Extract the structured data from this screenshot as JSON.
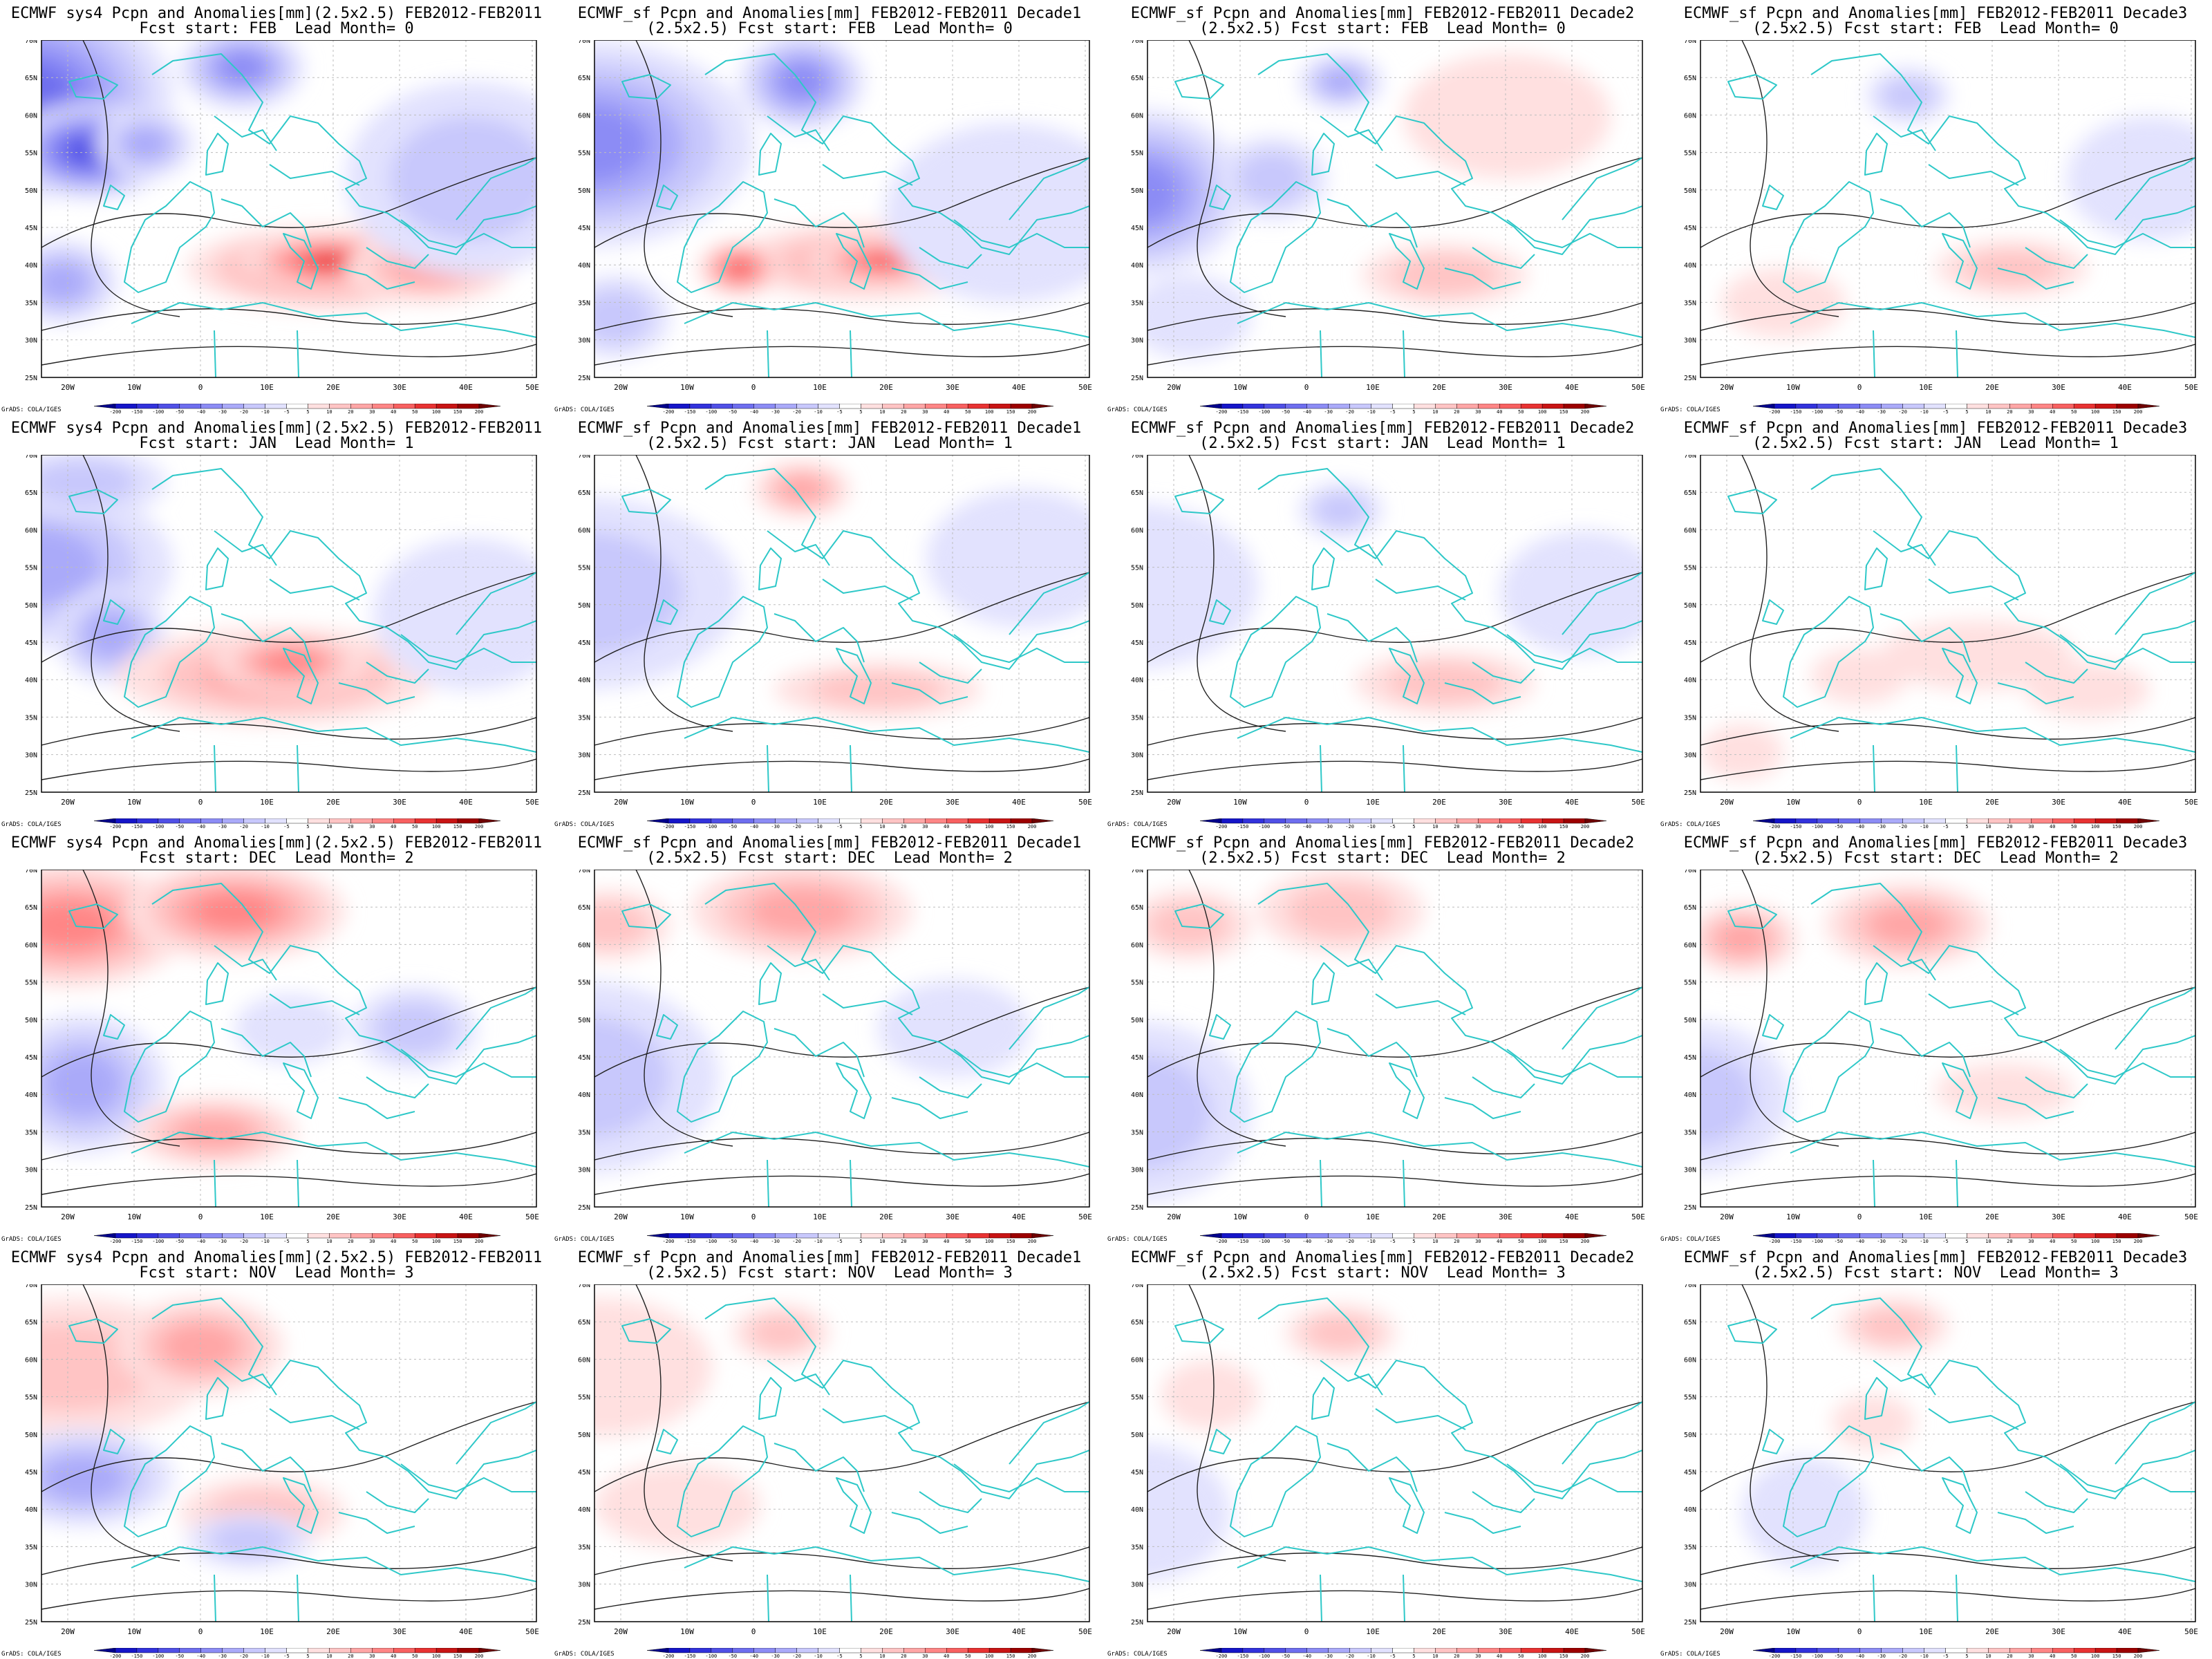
{
  "panels": [
    {
      "title1": "ECMWF sys4 Pcpn and Anomalies[mm](2.5x2.5) FEB2012-FEB2011",
      "title2": "Fcst start: FEB  Lead Month= 0"
    },
    {
      "title1": "ECMWF_sf Pcpn and Anomalies[mm] FEB2012-FEB2011 Decade1",
      "title2": "(2.5x2.5) Fcst start: FEB  Lead Month= 0"
    },
    {
      "title1": "ECMWF_sf Pcpn and Anomalies[mm] FEB2012-FEB2011 Decade2",
      "title2": "(2.5x2.5) Fcst start: FEB  Lead Month= 0"
    },
    {
      "title1": "ECMWF_sf Pcpn and Anomalies[mm] FEB2012-FEB2011 Decade3",
      "title2": "(2.5x2.5) Fcst start: FEB  Lead Month= 0"
    },
    {
      "title1": "ECMWF sys4 Pcpn and Anomalies[mm](2.5x2.5) FEB2012-FEB2011",
      "title2": "Fcst start: JAN  Lead Month= 1"
    },
    {
      "title1": "ECMWF_sf Pcpn and Anomalies[mm] FEB2012-FEB2011 Decade1",
      "title2": "(2.5x2.5) Fcst start: JAN  Lead Month= 1"
    },
    {
      "title1": "ECMWF_sf Pcpn and Anomalies[mm] FEB2012-FEB2011 Decade2",
      "title2": "(2.5x2.5) Fcst start: JAN  Lead Month= 1"
    },
    {
      "title1": "ECMWF_sf Pcpn and Anomalies[mm] FEB2012-FEB2011 Decade3",
      "title2": "(2.5x2.5) Fcst start: JAN  Lead Month= 1"
    },
    {
      "title1": "ECMWF sys4 Pcpn and Anomalies[mm](2.5x2.5) FEB2012-FEB2011",
      "title2": "Fcst start: DEC  Lead Month= 2"
    },
    {
      "title1": "ECMWF_sf Pcpn and Anomalies[mm] FEB2012-FEB2011 Decade1",
      "title2": "(2.5x2.5) Fcst start: DEC  Lead Month= 2"
    },
    {
      "title1": "ECMWF_sf Pcpn and Anomalies[mm] FEB2012-FEB2011 Decade2",
      "title2": "(2.5x2.5) Fcst start: DEC  Lead Month= 2"
    },
    {
      "title1": "ECMWF_sf Pcpn and Anomalies[mm] FEB2012-FEB2011 Decade3",
      "title2": "(2.5x2.5) Fcst start: DEC  Lead Month= 2"
    },
    {
      "title1": "ECMWF sys4 Pcpn and Anomalies[mm](2.5x2.5) FEB2012-FEB2011",
      "title2": "Fcst start: NOV  Lead Month= 3"
    },
    {
      "title1": "ECMWF_sf Pcpn and Anomalies[mm] FEB2012-FEB2011 Decade1",
      "title2": "(2.5x2.5) Fcst start: NOV  Lead Month= 3"
    },
    {
      "title1": "ECMWF_sf Pcpn and Anomalies[mm] FEB2012-FEB2011 Decade2",
      "title2": "(2.5x2.5) Fcst start: NOV  Lead Month= 3"
    },
    {
      "title1": "ECMWF_sf Pcpn and Anomalies[mm] FEB2012-FEB2011 Decade3",
      "title2": "(2.5x2.5) Fcst start: NOV  Lead Month= 3"
    }
  ],
  "credit": "GrADS: COLA/IGES",
  "lat_labels": [
    "70N",
    "65N",
    "60N",
    "55N",
    "50N",
    "45N",
    "40N",
    "35N",
    "30N",
    "25N"
  ],
  "lon_labels": [
    "20W",
    "10W",
    "0",
    "10E",
    "20E",
    "30E",
    "40E",
    "50E"
  ],
  "colorbar": {
    "labels": [
      "-200",
      "-150",
      "-100",
      "-50",
      "-40",
      "-30",
      "-20",
      "-10",
      "-5",
      "5",
      "10",
      "20",
      "30",
      "40",
      "50",
      "100",
      "150",
      "200"
    ],
    "colors": [
      "#00008b",
      "#1515c8",
      "#3232dc",
      "#5050e6",
      "#6e6eef",
      "#8c8cf5",
      "#aaaaf9",
      "#c8c8fc",
      "#e2e2fe",
      "#ffffff",
      "#ffe0e0",
      "#ffc4c4",
      "#ffa6a6",
      "#ff8686",
      "#f86060",
      "#e83232",
      "#c81414",
      "#9c0000",
      "#6e0000"
    ]
  },
  "colors": {
    "coast": "#2ec8c8",
    "contour": "#222222",
    "grid": "#bdbdbd"
  }
}
